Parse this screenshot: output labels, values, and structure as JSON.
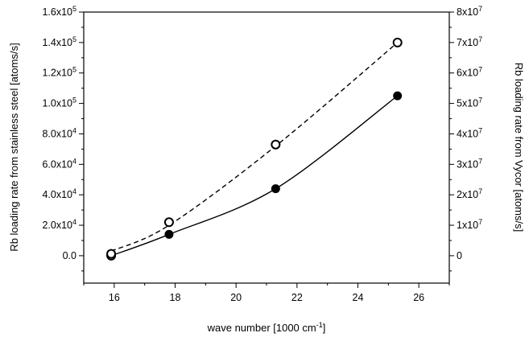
{
  "chart_data": {
    "type": "scatter",
    "xlabel": "wave number [1000 cm",
    "xlabel_sup": "-1",
    "xlabel_suffix": "]",
    "ylabel_left": "Rb loading rate from stainless steel [atoms/s]",
    "ylabel_right": "Rb loading rate from Vycor  [atoms/s]",
    "xlim": [
      15,
      27
    ],
    "ylim_left": [
      -18000,
      160000
    ],
    "ylim_right": [
      -9000000,
      80000000
    ],
    "x_ticks": [
      {
        "v": 16,
        "label": "16"
      },
      {
        "v": 18,
        "label": "18"
      },
      {
        "v": 20,
        "label": "20"
      },
      {
        "v": 22,
        "label": "22"
      },
      {
        "v": 24,
        "label": "24"
      },
      {
        "v": 26,
        "label": "26"
      }
    ],
    "y_left_ticks": [
      {
        "v": 0,
        "base": "0.0",
        "exp": ""
      },
      {
        "v": 20000,
        "base": "2.0x10",
        "exp": "4"
      },
      {
        "v": 40000,
        "base": "4.0x10",
        "exp": "4"
      },
      {
        "v": 60000,
        "base": "6.0x10",
        "exp": "4"
      },
      {
        "v": 80000,
        "base": "8.0x10",
        "exp": "4"
      },
      {
        "v": 100000,
        "base": "1.0x10",
        "exp": "5"
      },
      {
        "v": 120000,
        "base": "1.2x10",
        "exp": "5"
      },
      {
        "v": 140000,
        "base": "1.4x10",
        "exp": "5"
      },
      {
        "v": 160000,
        "base": "1.6x10",
        "exp": "5"
      }
    ],
    "y_right_ticks": [
      {
        "v": 0,
        "base": "0",
        "exp": ""
      },
      {
        "v": 10000000,
        "base": "1x10",
        "exp": "7"
      },
      {
        "v": 20000000,
        "base": "2x10",
        "exp": "7"
      },
      {
        "v": 30000000,
        "base": "3x10",
        "exp": "7"
      },
      {
        "v": 40000000,
        "base": "4x10",
        "exp": "7"
      },
      {
        "v": 50000000,
        "base": "5x10",
        "exp": "7"
      },
      {
        "v": 60000000,
        "base": "6x10",
        "exp": "7"
      },
      {
        "v": 70000000,
        "base": "7x10",
        "exp": "7"
      },
      {
        "v": 80000000,
        "base": "8x10",
        "exp": "7"
      }
    ],
    "series": [
      {
        "marker": "filled-circle",
        "axis": "left",
        "line": "solid",
        "x": [
          15.9,
          17.8,
          21.3,
          25.3
        ],
        "y": [
          0,
          14000,
          44000,
          105000
        ]
      },
      {
        "marker": "open-circle",
        "axis": "right",
        "line": "dashed",
        "x": [
          15.9,
          15.9,
          17.8,
          21.3,
          25.3
        ],
        "y": [
          0,
          600000,
          11000000,
          36500000,
          70000000
        ]
      }
    ],
    "fit_solid": {
      "x": [
        15.9,
        17.8,
        21.3,
        25.3
      ],
      "y": [
        0,
        14000,
        44000,
        105000
      ]
    },
    "fit_dashed": {
      "x": [
        15.9,
        17.8,
        21.3,
        25.3
      ],
      "y": [
        1500000,
        10000000,
        36000000,
        70000000
      ]
    },
    "grid": false,
    "legend": "none"
  }
}
